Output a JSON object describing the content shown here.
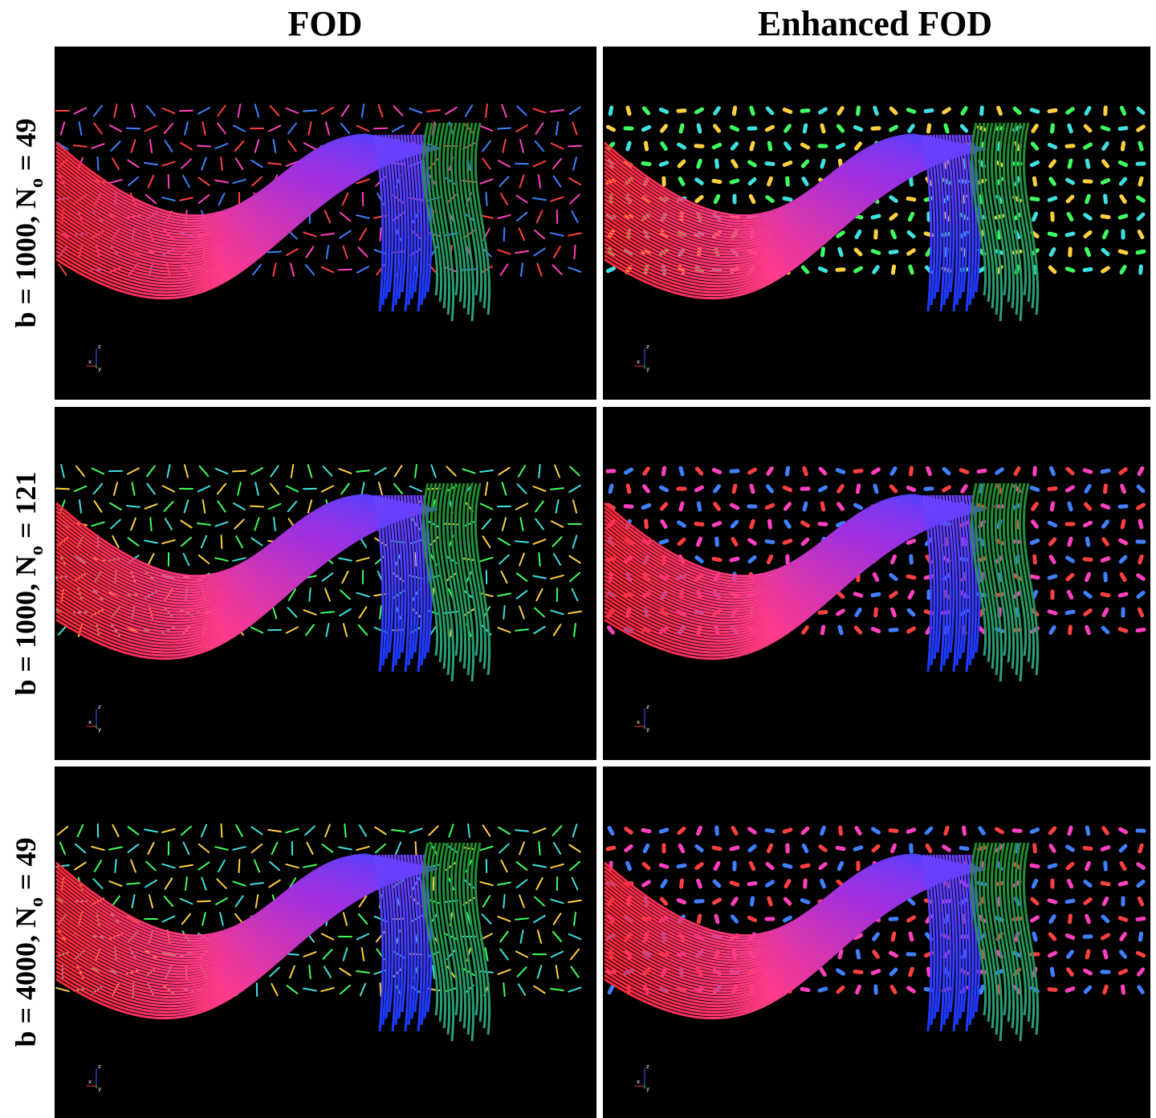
{
  "columns": [
    "FOD",
    "Enhanced FOD"
  ],
  "rows": [
    {
      "prefix": "b = 1000, N",
      "subscript": "o",
      "suffix": " = 49"
    },
    {
      "prefix": "b = 1000, N",
      "subscript": "o",
      "suffix": " = 121"
    },
    {
      "prefix": "b = 4000, N",
      "subscript": "o",
      "suffix": " = 49"
    }
  ],
  "axis_labels": {
    "x": "x",
    "y": "y",
    "z": "z"
  }
}
